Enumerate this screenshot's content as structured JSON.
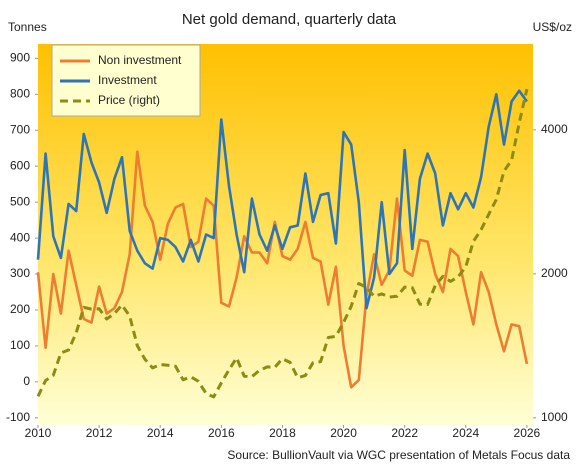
{
  "chart_data": {
    "type": "line",
    "title": "Net gold demand, quarterly data",
    "y_label": "Tonnes",
    "y2_label": "US$/oz",
    "source": "Source: BullionVault via WGC presentation of Metals Focus data",
    "x": [
      2010,
      2010.25,
      2010.5,
      2010.75,
      2011,
      2011.25,
      2011.5,
      2011.75,
      2012,
      2012.25,
      2012.5,
      2012.75,
      2013,
      2013.25,
      2013.5,
      2013.75,
      2014,
      2014.25,
      2014.5,
      2014.75,
      2015,
      2015.25,
      2015.5,
      2015.75,
      2016,
      2016.25,
      2016.5,
      2016.75,
      2017,
      2017.25,
      2017.5,
      2017.75,
      2018,
      2018.25,
      2018.5,
      2018.75,
      2019,
      2019.25,
      2019.5,
      2019.75,
      2020,
      2020.25,
      2020.5,
      2020.75,
      2021,
      2021.25,
      2021.5,
      2021.75,
      2022,
      2022.25,
      2022.5,
      2022.75,
      2023,
      2023.25,
      2023.5,
      2023.75,
      2024,
      2024.25,
      2024.5,
      2024.75,
      2025,
      2025.25,
      2025.5,
      2025.75,
      2026
    ],
    "series": [
      {
        "name": "Non investment",
        "color": "#ed7d31",
        "values": [
          305,
          95,
          300,
          190,
          365,
          270,
          175,
          165,
          265,
          190,
          205,
          250,
          355,
          640,
          490,
          445,
          340,
          440,
          485,
          495,
          375,
          390,
          510,
          490,
          220,
          210,
          290,
          405,
          360,
          360,
          330,
          445,
          350,
          340,
          370,
          445,
          345,
          335,
          215,
          320,
          100,
          -15,
          5,
          240,
          355,
          270,
          310,
          510,
          310,
          295,
          395,
          390,
          300,
          250,
          370,
          350,
          250,
          160,
          305,
          250,
          160,
          85,
          160,
          155,
          50
        ]
      },
      {
        "name": "Investment",
        "color": "#2e75b6",
        "values": [
          340,
          635,
          405,
          345,
          495,
          475,
          690,
          610,
          555,
          470,
          565,
          625,
          420,
          365,
          330,
          315,
          400,
          395,
          375,
          335,
          395,
          335,
          410,
          400,
          730,
          545,
          410,
          305,
          510,
          410,
          365,
          435,
          370,
          430,
          435,
          580,
          445,
          520,
          525,
          385,
          695,
          660,
          500,
          205,
          290,
          500,
          300,
          330,
          645,
          370,
          565,
          635,
          580,
          435,
          525,
          480,
          525,
          485,
          570,
          710,
          800,
          660,
          780,
          810,
          780
        ]
      },
      {
        "name": "Price (right)",
        "color": "#8c8c14",
        "axis": "y2",
        "dashed": true,
        "values": [
          1109,
          1197,
          1227,
          1367,
          1386,
          1506,
          1702,
          1688,
          1691,
          1609,
          1652,
          1722,
          1632,
          1415,
          1326,
          1272,
          1293,
          1288,
          1282,
          1201,
          1218,
          1192,
          1124,
          1106,
          1183,
          1260,
          1335,
          1222,
          1219,
          1257,
          1278,
          1275,
          1329,
          1306,
          1213,
          1226,
          1304,
          1310,
          1472,
          1481,
          1583,
          1711,
          1909,
          1874,
          1794,
          1816,
          1789,
          1795,
          1877,
          1871,
          1729,
          1726,
          1890,
          1976,
          1929,
          1971,
          2070,
          2338,
          2474,
          2663,
          2860,
          3280,
          3457,
          4135,
          4870
        ]
      }
    ],
    "xlim": [
      2010,
      2026.2
    ],
    "xticks": [
      2010,
      2012,
      2014,
      2016,
      2018,
      2020,
      2022,
      2024,
      2026
    ],
    "ylim": [
      -120,
      940
    ],
    "yticks": [
      -100,
      0,
      100,
      200,
      300,
      400,
      500,
      600,
      700,
      800,
      900
    ],
    "y2lim": [
      966,
      6050
    ],
    "y2ticks": [
      1000,
      2000,
      4000
    ],
    "y2_log": true,
    "grid": false,
    "legend": "upper left"
  }
}
